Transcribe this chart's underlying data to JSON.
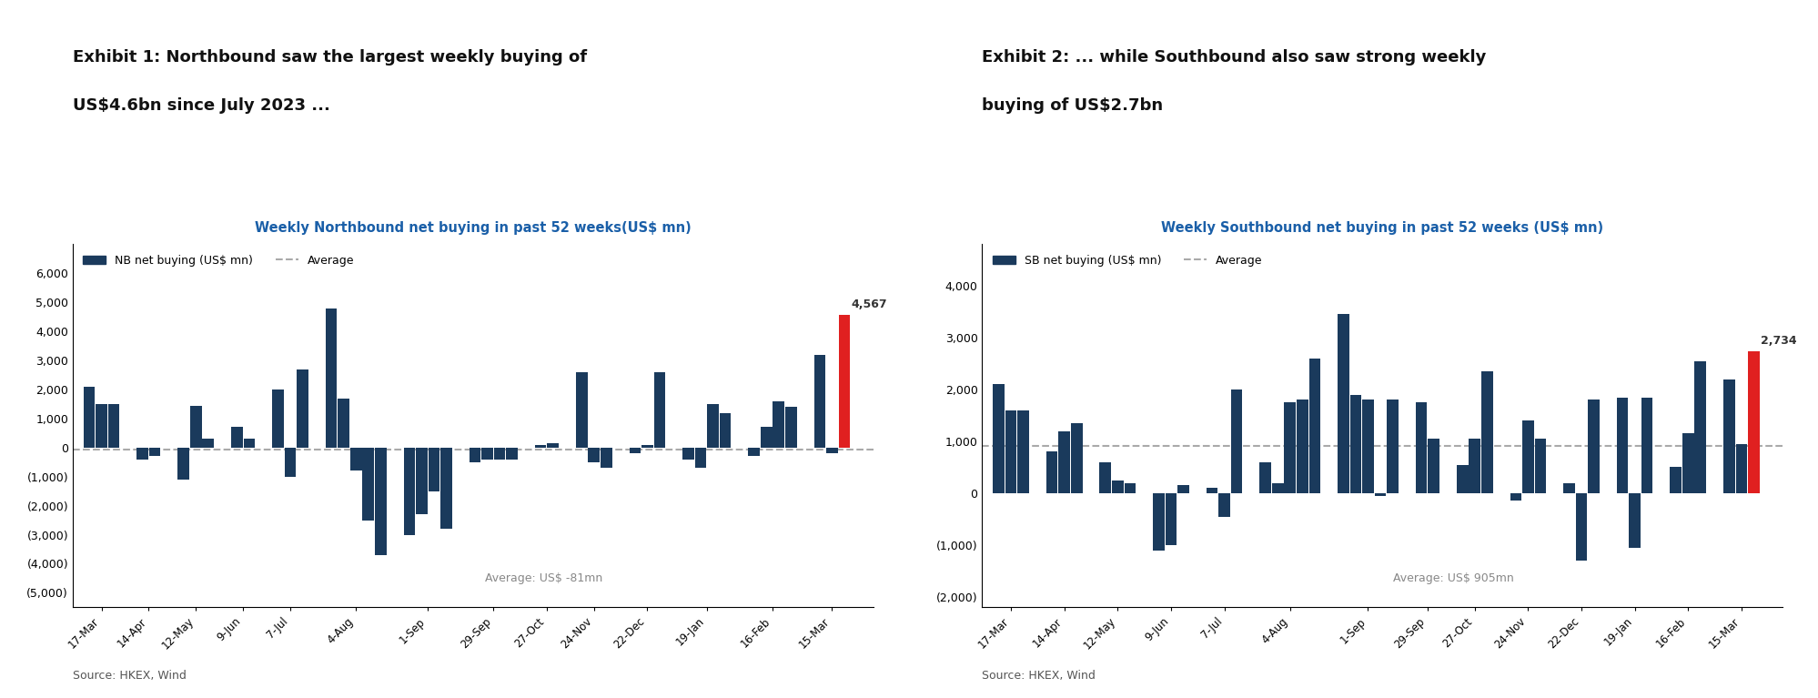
{
  "nb_labels": [
    "17-Mar",
    "14-Apr",
    "12-May",
    "9-Jun",
    "7-Jul",
    "4-Aug",
    "1-Sep",
    "29-Sep",
    "27-Oct",
    "24-Nov",
    "22-Dec",
    "19-Jan",
    "16-Feb",
    "15-Mar"
  ],
  "nb_values_per_tick": [
    [
      2100,
      1500,
      1500
    ],
    [
      -400,
      -300
    ],
    [
      -1100,
      1450,
      300
    ],
    [
      700,
      300
    ],
    [
      2000,
      -1000,
      2700
    ],
    [
      4800,
      1700,
      -800,
      -2500,
      -3700
    ],
    [
      -3000,
      -2300,
      -1500,
      -2800
    ],
    [
      -500,
      -400,
      -400,
      -400
    ],
    [
      100,
      150
    ],
    [
      2600,
      -500,
      -700
    ],
    [
      -200,
      100,
      2600
    ],
    [
      -400,
      -700,
      1500,
      1200
    ],
    [
      -300,
      700,
      1600,
      1400
    ],
    [
      3200,
      -200,
      4567
    ]
  ],
  "nb_average": -81,
  "nb_ylim": [
    -5500,
    7000
  ],
  "nb_yticks": [
    -5000,
    -4000,
    -3000,
    -2000,
    -1000,
    0,
    1000,
    2000,
    3000,
    4000,
    5000,
    6000
  ],
  "nb_ytick_labels": [
    "(5,000)",
    "(4,000)",
    "(3,000)",
    "(2,000)",
    "(1,000)",
    "0",
    "1,000",
    "2,000",
    "3,000",
    "4,000",
    "5,000",
    "6,000"
  ],
  "sb_labels": [
    "17-Mar",
    "14-Apr",
    "12-May",
    "9-Jun",
    "7-Jul",
    "4-Aug",
    "1-Sep",
    "29-Sep",
    "27-Oct",
    "24-Nov",
    "22-Dec",
    "19-Jan",
    "16-Feb",
    "15-Mar"
  ],
  "sb_values_per_tick": [
    [
      2100,
      1600,
      1600
    ],
    [
      800,
      1200,
      1350
    ],
    [
      600,
      250,
      200
    ],
    [
      -1100,
      -1000,
      150
    ],
    [
      100,
      -450,
      2000
    ],
    [
      600,
      200,
      1750,
      1800,
      2600
    ],
    [
      3450,
      1900,
      1800,
      -50,
      1800
    ],
    [
      1750,
      1050
    ],
    [
      550,
      1050,
      2350
    ],
    [
      -150,
      1400,
      1050
    ],
    [
      200,
      -1300,
      1800
    ],
    [
      1850,
      -1050,
      1850
    ],
    [
      500,
      1150,
      2550
    ],
    [
      2200,
      950,
      2734
    ]
  ],
  "sb_average": 905,
  "sb_ylim": [
    -2200,
    4800
  ],
  "sb_yticks": [
    -2000,
    -1000,
    0,
    1000,
    2000,
    3000,
    4000
  ],
  "sb_ytick_labels": [
    "(2,000)",
    "(1,000)",
    "0",
    "1,000",
    "2,000",
    "3,000",
    "4,000"
  ],
  "bar_color": "#1a3a5c",
  "bar_color_last": "#e02020",
  "avg_line_color": "#aaaaaa",
  "chart1_title_pre": "Weekly ",
  "chart1_title_underline": "Northbound",
  "chart1_title_post": " net buying in past 52 weeks(US$ mn)",
  "chart2_title_pre": "Weekly ",
  "chart2_title_underline": "Southbound",
  "chart2_title_post": " net buying in past 52 weeks (US$ mn)",
  "exhibit1_line1": "Exhibit 1: Northbound saw the largest weekly buying of",
  "exhibit1_line2": "US$4.6bn since July 2023 ...",
  "exhibit2_line1": "Exhibit 2: ... while Southbound also saw strong weekly",
  "exhibit2_line2": "buying of US$2.7bn",
  "legend1_bar": "NB net buying (US$ mn)",
  "legend2_bar": "SB net buying (US$ mn)",
  "legend_avg": "Average",
  "source_text": "Source: HKEX, Wind",
  "avg1_label": "Average: US$ -81mn",
  "avg2_label": "Average: US$ 905mn",
  "bg_color": "#ffffff",
  "title_color": "#1a5fa8",
  "text_color": "#333333",
  "avg_label_color": "#888888"
}
